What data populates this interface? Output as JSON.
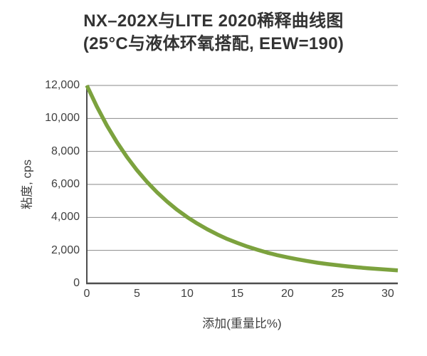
{
  "title": {
    "line1": "NX–202X与LITE 2020稀释曲线图",
    "line2": "(25°C与液体环氧搭配, EEW=190)"
  },
  "colors": {
    "curve": "#7ca23e",
    "axis": "#4d4d4d",
    "grid": "#8a8a8a",
    "text": "#3f3f3f",
    "title_text": "#333333",
    "background": "#ffffff"
  },
  "chart_data": {
    "type": "line",
    "title": "NX–202X与LITE 2020稀释曲线图 (25°C与液体环氧搭配, EEW=190)",
    "xlabel": "添加(重量比%)",
    "ylabel": "粘度, cps",
    "xlim": [
      0,
      31
    ],
    "ylim": [
      0,
      12000
    ],
    "xticks": [
      0,
      5,
      10,
      15,
      20,
      25,
      30
    ],
    "xtick_labels": [
      "0",
      "5",
      "10",
      "15",
      "20",
      "25",
      "30"
    ],
    "yticks": [
      0,
      2000,
      4000,
      6000,
      8000,
      10000,
      12000
    ],
    "ytick_labels": [
      "0",
      "2,000",
      "4,000",
      "6,000",
      "8,000",
      "10,000",
      "12,000"
    ],
    "grid": "horizontal",
    "legend": "none",
    "series": [
      {
        "x": [
          0,
          1,
          2,
          3,
          4,
          5,
          6,
          7,
          8,
          9,
          10,
          11,
          12,
          13,
          14,
          15,
          16,
          17,
          18,
          19,
          20,
          21,
          22,
          23,
          24,
          25,
          26,
          27,
          28,
          29,
          30,
          31
        ],
        "y": [
          12000,
          10720,
          9570,
          8560,
          7660,
          6860,
          6150,
          5520,
          4960,
          4460,
          4020,
          3630,
          3280,
          2970,
          2690,
          2450,
          2230,
          2040,
          1860,
          1710,
          1580,
          1460,
          1350,
          1250,
          1170,
          1100,
          1030,
          970,
          920,
          870,
          830,
          790
        ]
      }
    ]
  }
}
